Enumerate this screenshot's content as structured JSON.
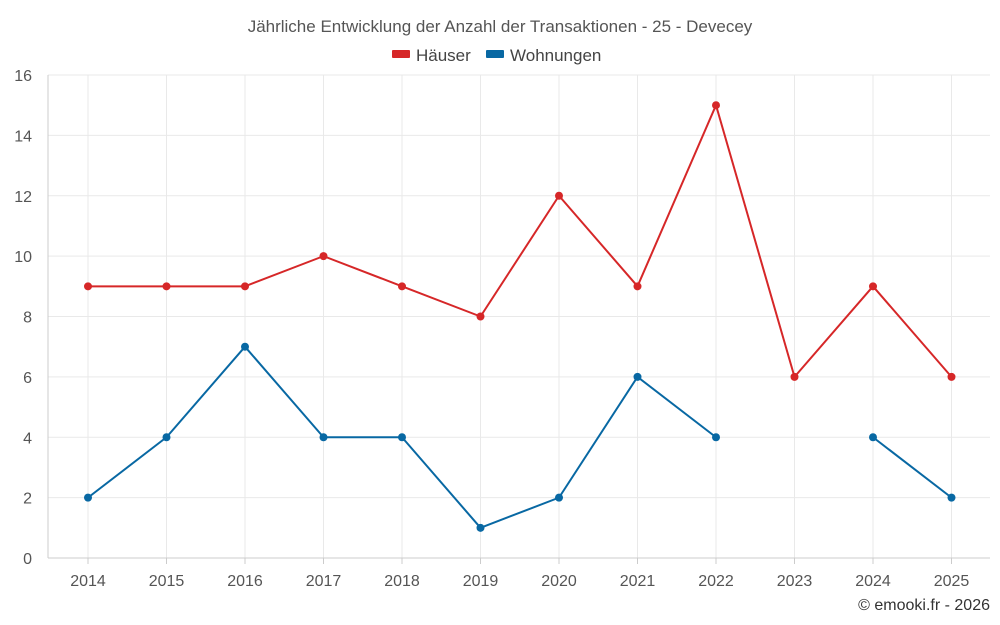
{
  "chart_data": {
    "type": "line",
    "title": "Jährliche Entwicklung der Anzahl der Transaktionen - 25 - Devecey",
    "categories": [
      "2014",
      "2015",
      "2016",
      "2017",
      "2018",
      "2019",
      "2020",
      "2021",
      "2022",
      "2023",
      "2024",
      "2025"
    ],
    "yticks": [
      "0",
      "2",
      "4",
      "6",
      "8",
      "10",
      "12",
      "14",
      "16"
    ],
    "ylim": [
      0,
      16
    ],
    "grid": true,
    "legend_position": "top-center",
    "series": [
      {
        "name": "Häuser",
        "color": "#d62728",
        "values": [
          9,
          9,
          9,
          10,
          9,
          8,
          12,
          9,
          15,
          6,
          9,
          6
        ]
      },
      {
        "name": "Wohnungen",
        "color": "#0868a3",
        "values": [
          2,
          4,
          7,
          4,
          4,
          1,
          2,
          6,
          4,
          null,
          4,
          2
        ]
      }
    ]
  },
  "credit": "© emooki.fr - 2026"
}
